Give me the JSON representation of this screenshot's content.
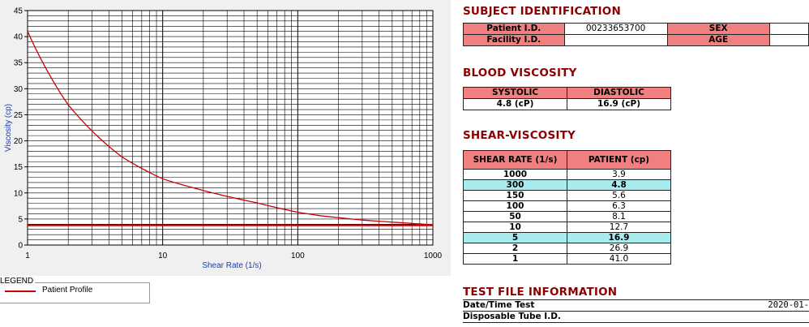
{
  "chart_data": {
    "type": "line",
    "xscale": "log",
    "xlabel": "Shear Rate (1/s)",
    "ylabel": "Viscosity (cp)",
    "xlim": [
      1,
      1000
    ],
    "ylim": [
      0,
      45
    ],
    "xticks": [
      "1",
      "10",
      "100",
      "1000"
    ],
    "yticks": [
      "0",
      "5",
      "10",
      "15",
      "20",
      "25",
      "30",
      "35",
      "40",
      "45"
    ],
    "grid": true,
    "legend": {
      "title": "LEGEND",
      "position": "bottom-left",
      "entries": [
        "Patient Profile"
      ]
    },
    "series": [
      {
        "name": "Patient Profile",
        "x": [
          1,
          2,
          5,
          10,
          50,
          100,
          150,
          300,
          1000
        ],
        "y": [
          41.0,
          26.9,
          16.9,
          12.7,
          8.1,
          6.3,
          5.6,
          4.8,
          3.9
        ]
      }
    ],
    "reference_line_y": 3.8,
    "colors": {
      "series": "#cc0000",
      "grid": "#000000",
      "background": "#ffffff"
    }
  },
  "subject": {
    "title": "SUBJECT IDENTIFICATION",
    "patient_id_label": "Patient I.D.",
    "patient_id_value": "00233653700",
    "facility_id_label": "Facility I.D.",
    "facility_id_value": "",
    "sex_label": "SEX",
    "sex_value": "",
    "age_label": "AGE",
    "age_value": ""
  },
  "blood": {
    "title": "BLOOD VISCOSITY",
    "systolic_label": "SYSTOLIC",
    "diastolic_label": "DIASTOLIC",
    "systolic_value": "4.8 (cP)",
    "diastolic_value": "16.9 (cP)"
  },
  "shear": {
    "title": "SHEAR-VISCOSITY",
    "col_rate": "SHEAR RATE (1/s)",
    "col_patient": "PATIENT (cp)",
    "rows": [
      {
        "rate": "1000",
        "value": "3.9",
        "highlight": false
      },
      {
        "rate": "300",
        "value": "4.8",
        "highlight": true
      },
      {
        "rate": "150",
        "value": "5.6",
        "highlight": false
      },
      {
        "rate": "100",
        "value": "6.3",
        "highlight": false
      },
      {
        "rate": "50",
        "value": "8.1",
        "highlight": false
      },
      {
        "rate": "10",
        "value": "12.7",
        "highlight": false
      },
      {
        "rate": "5",
        "value": "16.9",
        "highlight": true
      },
      {
        "rate": "2",
        "value": "26.9",
        "highlight": false
      },
      {
        "rate": "1",
        "value": "41.0",
        "highlight": false
      }
    ]
  },
  "testfile": {
    "title": "TEST FILE INFORMATION",
    "datetime_label": "Date/Time Test",
    "datetime_value": "2020-01-",
    "tube_label": "Disposable Tube I.D.",
    "tube_value": ""
  }
}
